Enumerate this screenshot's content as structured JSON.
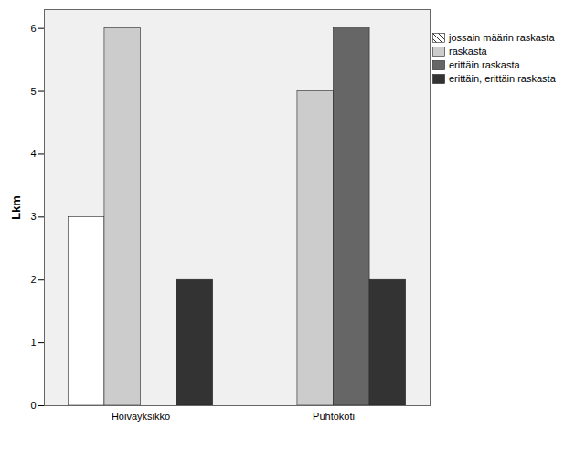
{
  "chart_data": {
    "type": "bar",
    "categories": [
      "Hoivayksikkö",
      "Puhtokoti"
    ],
    "series": [
      {
        "name": "jossain määrin raskasta",
        "color": "#ffffff",
        "values": [
          3,
          0
        ]
      },
      {
        "name": "raskasta",
        "color": "#cccccc",
        "values": [
          6,
          5
        ]
      },
      {
        "name": "erittäin raskasta",
        "color": "#666666",
        "values": [
          0,
          6
        ]
      },
      {
        "name": "erittäin, erittäin raskasta",
        "color": "#333333",
        "values": [
          2,
          2
        ]
      }
    ],
    "ylabel": "Lkm",
    "ylim": [
      0,
      6.3
    ],
    "yticks": [
      0,
      1,
      2,
      3,
      4,
      5,
      6
    ],
    "legend": "top-right"
  }
}
